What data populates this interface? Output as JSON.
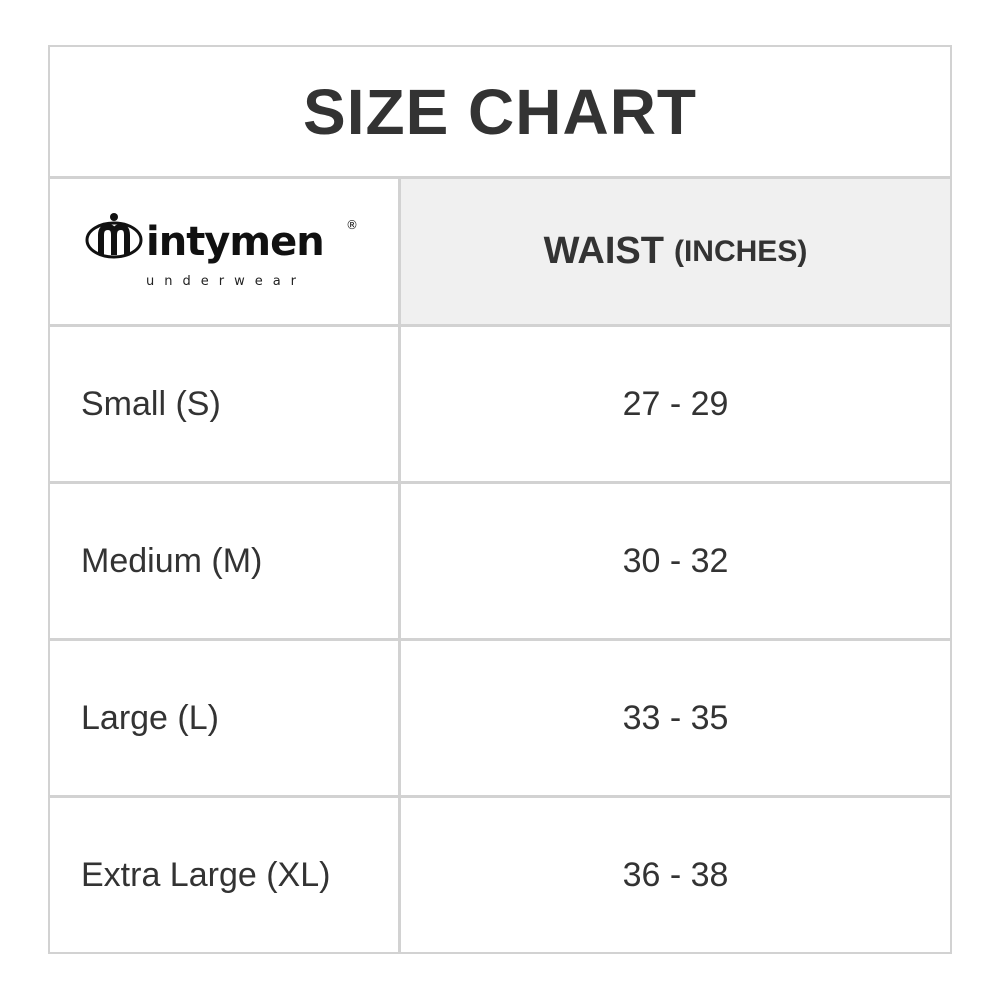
{
  "title": "SIZE CHART",
  "logo": {
    "brand": "intymen",
    "tagline": "underwear",
    "mark": "®"
  },
  "header": {
    "column": "WAIST",
    "unit": "(INCHES)"
  },
  "rows": [
    {
      "size": "Small (S)",
      "waist": "27 - 29"
    },
    {
      "size": "Medium (M)",
      "waist": "30 - 32"
    },
    {
      "size": "Large (L)",
      "waist": "33 - 35"
    },
    {
      "size": "Extra Large (XL)",
      "waist": "36 - 38"
    }
  ]
}
